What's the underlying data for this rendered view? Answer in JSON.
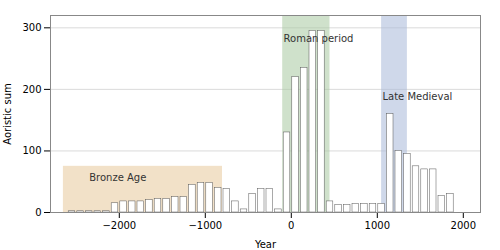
{
  "chart_data": {
    "type": "histogram",
    "xlabel": "Year",
    "ylabel": "Aoristic sum",
    "color": "white",
    "bins": [
      -2600,
      -2500,
      -2400,
      -2300,
      -2200,
      -2100,
      -2000,
      -1900,
      -1800,
      -1700,
      -1600,
      -1500,
      -1400,
      -1300,
      -1200,
      -1100,
      -1000,
      -900,
      -800,
      -700,
      -600,
      -500,
      -400,
      -300,
      -200,
      -100,
      0,
      100,
      200,
      300,
      400,
      500,
      600,
      700,
      800,
      900,
      1000,
      1100,
      1200,
      1300,
      1400,
      1500,
      1600,
      1700,
      1800,
      1900
    ],
    "values": [
      2,
      2,
      2,
      2,
      2,
      15,
      18,
      18,
      18,
      20,
      22,
      22,
      25,
      25,
      45,
      48,
      48,
      40,
      38,
      18,
      5,
      30,
      38,
      38,
      5,
      130,
      220,
      235,
      295,
      295,
      18,
      12,
      12,
      14,
      14,
      14,
      14,
      160,
      100,
      95,
      75,
      70,
      70,
      27,
      30
    ],
    "xlim": [
      -2800,
      2200
    ],
    "ylim": [
      0,
      320
    ],
    "xticks": [
      -2000,
      -1000,
      0,
      1000,
      2000
    ],
    "yticks": [
      0,
      100,
      200,
      300
    ],
    "grid": true,
    "highlights": [
      {
        "label": "Bronze Age",
        "xmin": -2650,
        "xmax": -800,
        "ymin": 0,
        "ymax": 75,
        "color": "#e8c89a",
        "label_x": -2350,
        "label_y": 62
      },
      {
        "label": "Roman period",
        "xmin": -100,
        "xmax": 450,
        "ymin": 0,
        "ymax": 320,
        "color": "#a8c8a0",
        "label_x": -90,
        "label_y": 288
      },
      {
        "label": "Late Medieval",
        "xmin": 1050,
        "xmax": 1350,
        "ymin": 0,
        "ymax": 320,
        "color": "#a8b8d8",
        "label_x": 1060,
        "label_y": 195
      }
    ]
  }
}
